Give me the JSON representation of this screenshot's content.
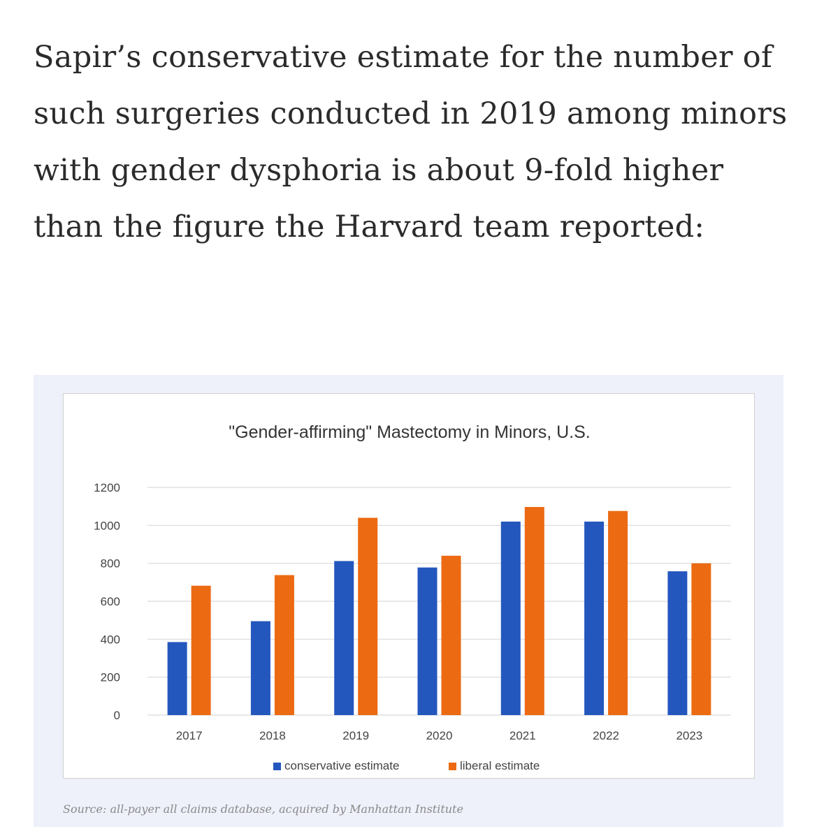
{
  "article": {
    "paragraph": "Sapir’s conservative estimate for the number of such surgeries conducted in 2019 among minors with gender dysphoria is about 9-fold higher than the figure the Harvard team reported:"
  },
  "figure": {
    "caption": "Source: all-payer all claims database, acquired by Manhattan Institute"
  },
  "colors": {
    "conservative": "#2457be",
    "liberal": "#ec6a12",
    "grid": "#d9d9d9",
    "tick": "#444444",
    "title": "#333333"
  },
  "chart_data": {
    "type": "bar",
    "title": "\"Gender-affirming\" Mastectomy in Minors, U.S.",
    "xlabel": "",
    "ylabel": "",
    "categories": [
      "2017",
      "2018",
      "2019",
      "2020",
      "2021",
      "2022",
      "2023"
    ],
    "series": [
      {
        "name": "conservative estimate",
        "values": [
          385,
          495,
          812,
          778,
          1020,
          1020,
          758
        ]
      },
      {
        "name": "liberal estimate",
        "values": [
          682,
          738,
          1040,
          840,
          1097,
          1076,
          800
        ]
      }
    ],
    "ylim": [
      0,
      1200
    ],
    "yticks": [
      0,
      200,
      400,
      600,
      800,
      1000,
      1200
    ],
    "grid": true,
    "legend": "bottom"
  }
}
